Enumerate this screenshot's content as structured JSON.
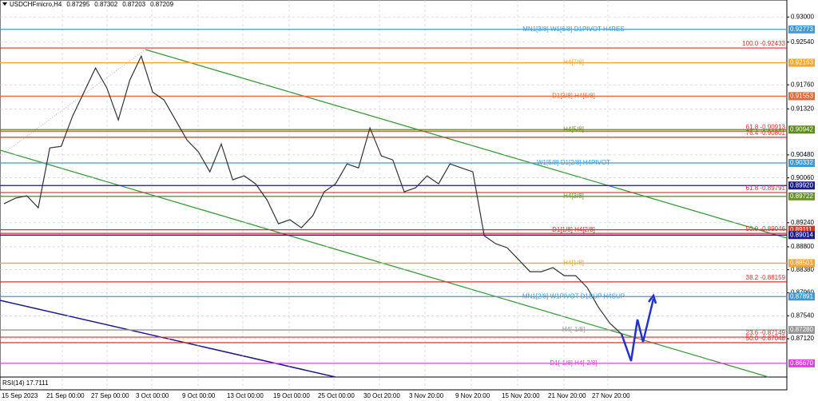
{
  "chart_data": {
    "type": "line",
    "symbol": "USDCHFmicro,H4",
    "ohlc": [
      0.87295,
      0.87302,
      0.87203,
      0.87209
    ],
    "indicator": "RSI(14) 17.7111",
    "ylim": [
      0.8642,
      0.9331
    ],
    "yticks": [
      {
        "value": 0.93,
        "label": "0.93000"
      },
      {
        "value": 0.9254,
        "label": "0.92540"
      },
      {
        "value": 0.9176,
        "label": "0.91760"
      },
      {
        "value": 0.9132,
        "label": "0.91320"
      },
      {
        "value": 0.9048,
        "label": "0.90480"
      },
      {
        "value": 0.9006,
        "label": "0.90060"
      },
      {
        "value": 0.8924,
        "label": "0.89240"
      },
      {
        "value": 0.888,
        "label": "0.88800"
      },
      {
        "value": 0.8838,
        "label": "0.88380"
      },
      {
        "value": 0.8796,
        "label": "0.87960"
      },
      {
        "value": 0.8754,
        "label": "0.87540"
      },
      {
        "value": 0.8712,
        "label": "0.87120"
      }
    ],
    "x_labels": [
      "15 Sep 2023",
      "21 Sep 00:00",
      "27 Sep 00:00",
      "3 Oct 00:00",
      "9 Oct 00:00",
      "13 Oct 00:00",
      "19 Oct 00:00",
      "25 Oct 00:00",
      "30 Oct 20:00",
      "3 Nov 20:00",
      "9 Nov 20:00",
      "15 Nov 20:00",
      "21 Nov 20:00",
      "27 Nov 20:00"
    ],
    "color": "#333333",
    "values": [
      0.89586,
      0.89688,
      0.89732,
      0.89513,
      0.90607,
      0.90636,
      0.91191,
      0.91629,
      0.92066,
      0.91701,
      0.91118,
      0.91847,
      0.92285,
      0.91629,
      0.91483,
      0.91118,
      0.90753,
      0.90534,
      0.9017,
      0.9068,
      0.90024,
      0.90097,
      0.89951,
      0.89659,
      0.89221,
      0.89294,
      0.89148,
      0.89367,
      0.89805,
      0.89951,
      0.90315,
      0.90242,
      0.90972,
      0.90461,
      0.90388,
      0.89805,
      0.89878,
      0.90097,
      0.89951,
      0.90315,
      0.90242,
      0.9017,
      0.89002,
      0.88856,
      0.88783,
      0.88564,
      0.88346,
      0.88346,
      0.88419,
      0.88273,
      0.88273,
      0.88054,
      0.87689,
      0.87398,
      0.87208
    ],
    "levels": [
      {
        "name": "MN1[3/8] W1[6/8] D1PIVOT H4RES",
        "value": 0.92773,
        "color": "#3d9ad6"
      },
      {
        "name": "H4[7/8]",
        "value": 0.92163,
        "color": "#f0a830"
      },
      {
        "name": "D1[3/8] H4[6/8]",
        "value": 0.91553,
        "color": "#e8663a"
      },
      {
        "name": "H4[5/8]",
        "value": 0.90942,
        "color": "#5b8c1a"
      },
      {
        "name": "W1[5/8] D1[2/8] H4PIVOT",
        "value": 0.90332,
        "color": "#3d9ad6"
      },
      {
        "value": {
          "value": 0.8992,
          "label": "0.89920"
        },
        "color": "#1a1a8c"
      },
      {
        "name": "H4[3/8]",
        "value": 0.89722,
        "color": "#6b8f2a"
      },
      {
        "name": "D1[1/8] H4[2/8]",
        "value": 0.89111,
        "color": "#d9302a"
      },
      {
        "value": 0.89014,
        "color": "#1a1a8c"
      },
      {
        "name": "H4[1/8]",
        "value": 0.88501,
        "color": "#f0a830"
      },
      {
        "name": "MN1[2/8] W1PIVOT D1SUP H4SUP",
        "value": 0.87891,
        "color": "#3d9ad6"
      },
      {
        "name": "H4[-1/8]",
        "value": {
          "value": 0.8728,
          "label": "0.87280"
        },
        "color": "#999999"
      },
      {
        "name": "D1[-1/8] H4[-2/8]",
        "value": {
          "value": 0.8667,
          "label": "0.86670"
        },
        "color": "#e040e0"
      }
    ],
    "fib_color": "#d9302a",
    "fibs": [
      {
        "name": "100.0 -0.92433",
        "value": 0.92433
      },
      {
        "name": "61.8 -0.90913",
        "value": 0.90913
      },
      {
        "name": "76.4 -0.90801",
        "value": 0.90801
      },
      {
        "name": "61.8 -0.89791",
        "value": 0.89791
      },
      {
        "name": "50.0 -0.89046",
        "value": 0.89046
      },
      {
        "name": "38.2 -0.88159",
        "value": 0.88159
      },
      {
        "name": "23.6 -0.87149",
        "value": 0.87149
      },
      {
        "name": "50.0 -0.87048",
        "value": 0.87048
      }
    ]
  }
}
